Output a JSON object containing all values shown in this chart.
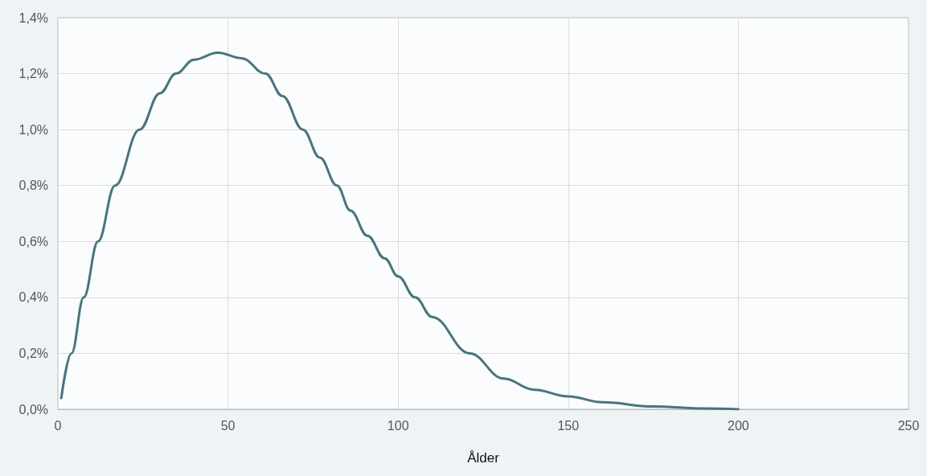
{
  "chart_data": {
    "type": "line",
    "xlabel": "Ålder",
    "x": [
      1,
      4,
      7.6,
      11.8,
      16.8,
      24,
      30,
      34.7,
      40,
      47,
      54,
      61,
      66,
      72,
      77,
      82,
      86,
      91,
      96,
      100,
      105,
      110,
      121,
      131,
      140,
      150,
      160,
      175,
      190,
      200
    ],
    "series": [
      {
        "color": "#4b7380",
        "values": [
          0.04,
          0.2,
          0.4,
          0.6,
          0.8,
          1.0,
          1.13,
          1.2,
          1.25,
          1.275,
          1.255,
          1.2,
          1.12,
          1.0,
          0.9,
          0.8,
          0.71,
          0.62,
          0.54,
          0.475,
          0.4,
          0.33,
          0.2,
          0.11,
          0.07,
          0.046,
          0.025,
          0.01,
          0.003,
          0.0
        ]
      }
    ],
    "xlim": [
      0,
      250
    ],
    "xticks": [
      0,
      50,
      100,
      150,
      200,
      250
    ],
    "ylim": [
      0,
      1.4
    ],
    "yticks": [
      {
        "value": 0,
        "label": "0,0%"
      },
      {
        "value": 0.2,
        "label": "0,2%"
      },
      {
        "value": 0.4,
        "label": "0,4%"
      },
      {
        "value": 0.6,
        "label": "0,6%"
      },
      {
        "value": 0.8,
        "label": "0,8%"
      },
      {
        "value": 1.0,
        "label": "1,0%"
      },
      {
        "value": 1.2,
        "label": "1,2%"
      },
      {
        "value": 1.4,
        "label": "1,4%"
      }
    ],
    "grid": true,
    "marker": "none",
    "line_style": "solid"
  }
}
